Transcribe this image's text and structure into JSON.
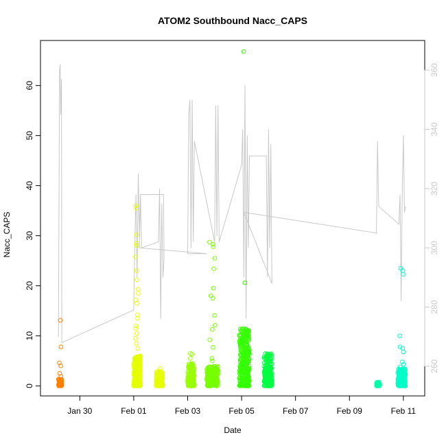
{
  "chart_data": {
    "type": "scatter",
    "title": "ATOM2 Southbound Nacc_CAPS",
    "xlabel": "Date",
    "ylabel": "Nacc_CAPS",
    "x_range": [
      "2017-01-28T13:00",
      "2017-02-11T19:00"
    ],
    "ylim": [
      -2,
      69
    ],
    "y2lim": [
      250,
      370
    ],
    "x_ticks": [
      {
        "date": "2017-01-30",
        "label": "Jan 30"
      },
      {
        "date": "2017-02-01",
        "label": "Feb 01"
      },
      {
        "date": "2017-02-03",
        "label": "Feb 03"
      },
      {
        "date": "2017-02-05",
        "label": "Feb 05"
      },
      {
        "date": "2017-02-07",
        "label": "Feb 07"
      },
      {
        "date": "2017-02-09",
        "label": "Feb 09"
      },
      {
        "date": "2017-02-11",
        "label": "Feb 11"
      }
    ],
    "y_ticks": [
      0,
      10,
      20,
      30,
      40,
      50,
      60
    ],
    "y_ticks_labels": [
      "0",
      "10",
      "20",
      "30",
      "40",
      "50",
      "60"
    ],
    "y2_ticks": [
      260,
      280,
      300,
      320,
      340,
      360
    ],
    "y2_ticks_labels": [
      "260",
      "280",
      "300",
      "320",
      "340",
      "360"
    ],
    "grid": false,
    "marker": "open-circle",
    "line_color": "#c8c8c8",
    "right_axis_color": "#c8c8c8",
    "point_clusters": [
      {
        "start": "2017-01-29T05:00",
        "end": "2017-01-29T08:00",
        "color": "#ff8000",
        "base_max": 1.5,
        "n": 60,
        "outliers": [
          13.1,
          7.8,
          4.6,
          4.0,
          2.5,
          1.9
        ]
      },
      {
        "start": "2017-02-01T00:00",
        "end": "2017-02-01T06:00",
        "color": "#e6ff00",
        "base_max": 6.0,
        "n": 320,
        "outliers": [
          36.0,
          35.5,
          30.2,
          28.5,
          28.0,
          25.8,
          23.0,
          21.2,
          19.3,
          18.5,
          17.2,
          16.5,
          14.2,
          13.5,
          12.0,
          11.5,
          10.5,
          9.5,
          8.5,
          7.5
        ]
      },
      {
        "start": "2017-02-01T20:00",
        "end": "2017-02-02T02:00",
        "color": "#e6ff00",
        "base_max": 3.0,
        "n": 140,
        "outliers": [
          3.5
        ]
      },
      {
        "start": "2017-02-03T00:00",
        "end": "2017-02-03T06:00",
        "color": "#99ff00",
        "base_max": 4.5,
        "n": 140,
        "outliers": [
          6.5,
          6.3,
          5.5
        ]
      },
      {
        "start": "2017-02-03T17:00",
        "end": "2017-02-04T03:00",
        "color": "#77ff00",
        "base_max": 4.0,
        "n": 220,
        "outliers": [
          28.7,
          28.3,
          27.8,
          25.5,
          23.4,
          19.5,
          18.0,
          17.5,
          14.1,
          12.1,
          11.3,
          9.2,
          7.7,
          5.5,
          5.0
        ]
      },
      {
        "start": "2017-02-04T22:00",
        "end": "2017-02-05T07:00",
        "color": "#33ff00",
        "base_max": 11.5,
        "n": 320,
        "outliers": [
          66.8,
          20.6,
          10.5
        ]
      },
      {
        "start": "2017-02-05T20:00",
        "end": "2017-02-06T03:00",
        "color": "#00ff40",
        "base_max": 6.5,
        "n": 200,
        "outliers": []
      },
      {
        "start": "2017-02-10T00:00",
        "end": "2017-02-10T03:00",
        "color": "#00ffaa",
        "base_max": 0.8,
        "n": 30,
        "outliers": []
      },
      {
        "start": "2017-02-10T19:00",
        "end": "2017-02-11T02:00",
        "color": "#00ffc8",
        "base_max": 3.5,
        "n": 180,
        "outliers": [
          23.5,
          23.0,
          22.3,
          10.0,
          7.8,
          7.5,
          6.8,
          4.8,
          4.3,
          3.8
        ]
      }
    ],
    "line_series": {
      "name": "",
      "points": [
        [
          "2017-01-29T05:00",
          270
        ],
        [
          "2017-01-29T06:00",
          360
        ],
        [
          "2017-01-29T06:30",
          362
        ],
        [
          "2017-01-29T07:00",
          345
        ],
        [
          "2017-01-29T07:40",
          357
        ],
        [
          "2017-01-29T08:00",
          268
        ],
        [
          "2017-02-01T00:00",
          279
        ],
        [
          "2017-02-01T01:00",
          302
        ],
        [
          "2017-02-01T02:00",
          318
        ],
        [
          "2017-02-01T03:00",
          290
        ],
        [
          "2017-02-01T04:00",
          325
        ],
        [
          "2017-02-01T05:00",
          305
        ],
        [
          "2017-02-01T06:00",
          318
        ],
        [
          "2017-02-01T07:00",
          300
        ],
        [
          "2017-02-01T22:00",
          302
        ],
        [
          "2017-02-01T23:00",
          320
        ],
        [
          "2017-02-02T00:00",
          276
        ],
        [
          "2017-02-02T01:00",
          315
        ],
        [
          "2017-02-02T02:00",
          290
        ],
        [
          "2017-02-02T03:00",
          296
        ],
        [
          "2017-02-02T02:30",
          318
        ],
        [
          "2017-02-01T06:00",
          318
        ],
        [
          "2017-02-01T05:00",
          300
        ],
        [
          "2017-02-03T17:00",
          298
        ],
        [
          "2017-02-03T00:00",
          298
        ],
        [
          "2017-02-03T01:00",
          345
        ],
        [
          "2017-02-03T02:00",
          350
        ],
        [
          "2017-02-03T03:00",
          300
        ],
        [
          "2017-02-03T04:00",
          350
        ],
        [
          "2017-02-03T05:00",
          302
        ],
        [
          "2017-02-03T06:00",
          336
        ],
        [
          "2017-02-04T00:00",
          302
        ],
        [
          "2017-02-04T01:00",
          348
        ],
        [
          "2017-02-04T02:00",
          304
        ],
        [
          "2017-02-04T03:00",
          348
        ],
        [
          "2017-02-04T04:00",
          302
        ],
        [
          "2017-02-05T00:00",
          328
        ],
        [
          "2017-02-05T01:00",
          340
        ],
        [
          "2017-02-05T02:00",
          290
        ],
        [
          "2017-02-05T03:00",
          355
        ],
        [
          "2017-02-05T04:00",
          276
        ],
        [
          "2017-02-05T05:00",
          338
        ],
        [
          "2017-02-05T06:00",
          300
        ],
        [
          "2017-02-05T07:00",
          331
        ],
        [
          "2017-02-05T22:00",
          331
        ],
        [
          "2017-02-05T23:00",
          290
        ],
        [
          "2017-02-06T00:00",
          340
        ],
        [
          "2017-02-06T01:00",
          300
        ],
        [
          "2017-02-06T02:00",
          335
        ],
        [
          "2017-02-06T03:00",
          288
        ],
        [
          "2017-02-05T02:00",
          312
        ],
        [
          "2017-02-10T00:00",
          305
        ],
        [
          "2017-02-10T01:00",
          336
        ],
        [
          "2017-02-10T02:00",
          314
        ],
        [
          "2017-02-10T20:00",
          308
        ],
        [
          "2017-02-10T21:00",
          318
        ],
        [
          "2017-02-10T22:00",
          282
        ],
        [
          "2017-02-10T23:00",
          320
        ],
        [
          "2017-02-11T00:00",
          338
        ],
        [
          "2017-02-11T01:00",
          312
        ],
        [
          "2017-02-11T02:00",
          314
        ]
      ]
    }
  }
}
